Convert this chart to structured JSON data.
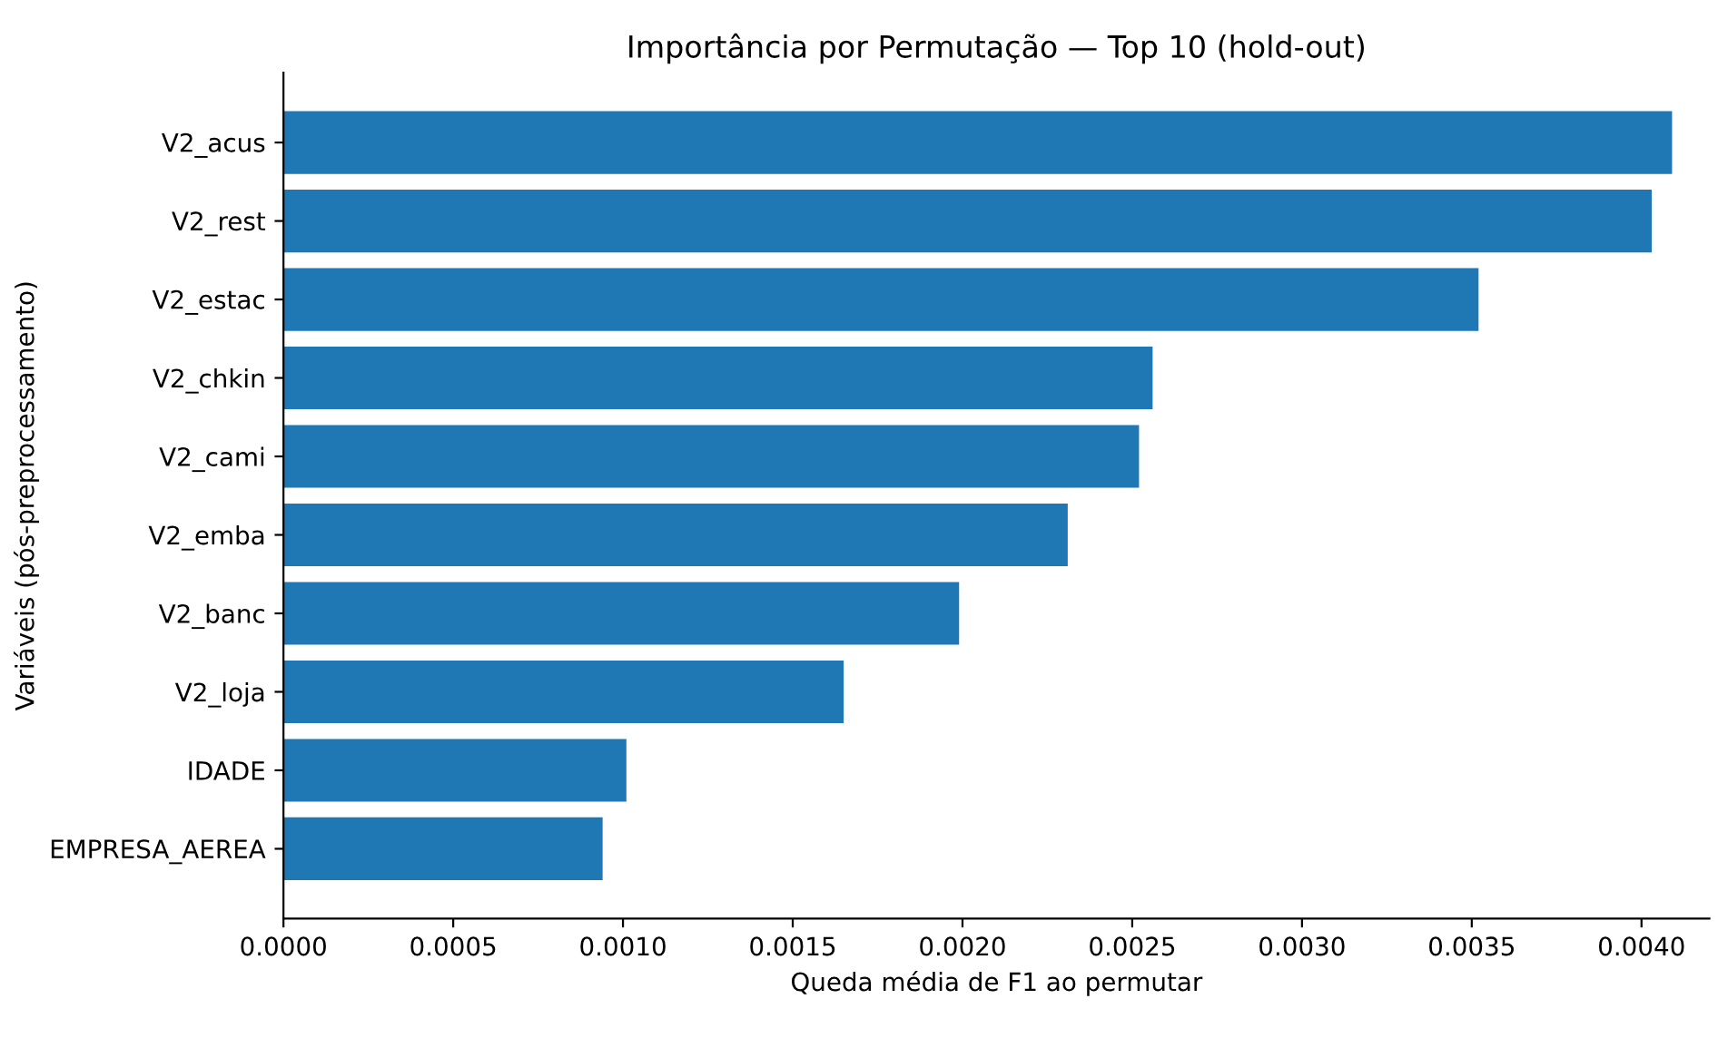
{
  "chart_data": {
    "type": "bar",
    "orientation": "horizontal",
    "title": "Importância por Permutação — Top 10 (hold-out)",
    "xlabel": "Queda média de F1 ao permutar",
    "ylabel": "Variáveis (pós-preprocessamento)",
    "categories": [
      "V2_acus",
      "V2_rest",
      "V2_estac",
      "V2_chkin",
      "V2_cami",
      "V2_emba",
      "V2_banc",
      "V2_loja",
      "IDADE",
      "EMPRESA_AEREA"
    ],
    "values": [
      0.00409,
      0.00403,
      0.00352,
      0.00256,
      0.00252,
      0.00231,
      0.00199,
      0.00165,
      0.00101,
      0.00094
    ],
    "color": "#1f77b4",
    "xlim": [
      0,
      0.0042
    ],
    "xticks": [
      {
        "value": 0,
        "label": "0.0000"
      },
      {
        "value": 0.0005,
        "label": "0.0005"
      },
      {
        "value": 0.001,
        "label": "0.0010"
      },
      {
        "value": 0.0015,
        "label": "0.0015"
      },
      {
        "value": 0.002,
        "label": "0.0020"
      },
      {
        "value": 0.0025,
        "label": "0.0025"
      },
      {
        "value": 0.003,
        "label": "0.0030"
      },
      {
        "value": 0.0035,
        "label": "0.0035"
      },
      {
        "value": 0.004,
        "label": "0.0040"
      }
    ],
    "grid": false
  }
}
